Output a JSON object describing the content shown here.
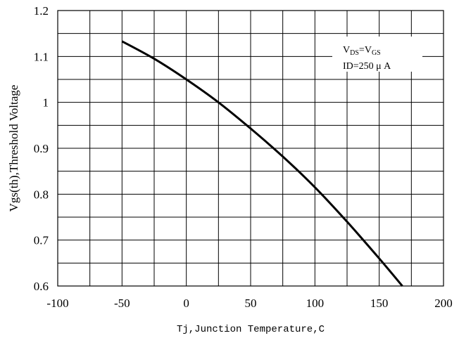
{
  "chart_data": {
    "type": "line",
    "title": "",
    "xlabel": "Tj,Junction Temperature,C",
    "ylabel": "Vgs(th),Threshold Voltage",
    "xlim": [
      -100,
      200
    ],
    "ylim": [
      0.6,
      1.2
    ],
    "grid": true,
    "x_ticks": [
      -100,
      -50,
      0,
      50,
      100,
      150,
      200
    ],
    "y_ticks": [
      0.6,
      0.7,
      0.8,
      0.9,
      1,
      1.1,
      1.2
    ],
    "x_tick_labels": [
      "-100",
      "-50",
      "0",
      "50",
      "100",
      "150",
      "200"
    ],
    "y_tick_labels": [
      "0.6",
      "0.7",
      "0.8",
      "0.9",
      "1",
      "1.1",
      "1.2"
    ],
    "annotation": {
      "line1": {
        "a": "V",
        "a_sub": "DS",
        "eq": "=V",
        "b_sub": "GS"
      },
      "line2": "ID=250 μ A"
    },
    "series": [
      {
        "x": [
          -50,
          -25,
          0,
          25,
          50,
          75,
          100,
          125,
          150,
          168
        ],
        "y": [
          1.133,
          1.095,
          1.05,
          1.0,
          0.943,
          0.882,
          0.815,
          0.74,
          0.66,
          0.6
        ]
      }
    ]
  }
}
